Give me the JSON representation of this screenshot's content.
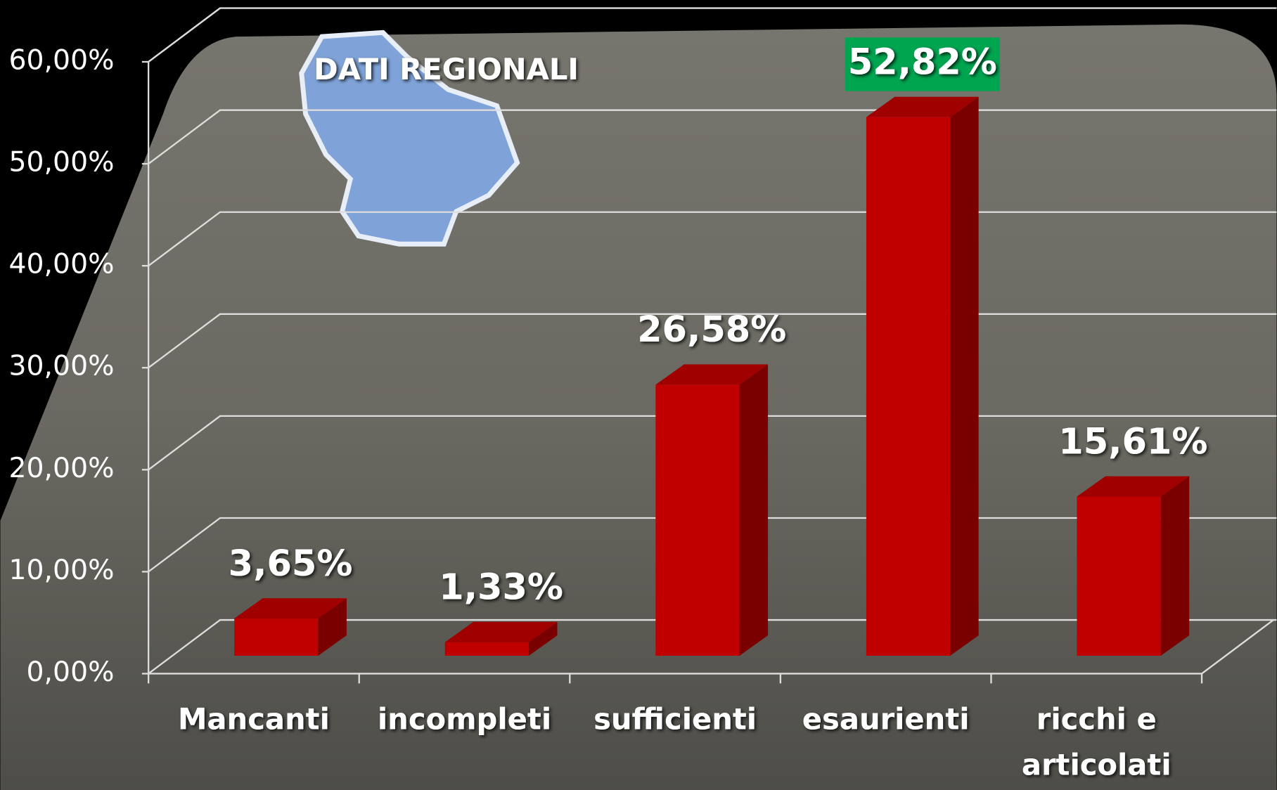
{
  "chart_data": {
    "type": "bar",
    "title": "DATI REGIONALI",
    "categories": [
      "Mancanti",
      "incompleti",
      "sufficienti",
      "esaurienti",
      "ricchi e articolati"
    ],
    "values": [
      3.65,
      1.33,
      26.58,
      52.82,
      15.61
    ],
    "value_labels": [
      "3,65%",
      "1,33%",
      "26,58%",
      "52,82%",
      "15,61%"
    ],
    "color": "#c00000",
    "ylim": [
      0,
      60
    ],
    "yticks": [
      {
        "value": 0,
        "label": "0,00%"
      },
      {
        "value": 10,
        "label": "10,00%"
      },
      {
        "value": 20,
        "label": "20,00%"
      },
      {
        "value": 30,
        "label": "30,00%"
      },
      {
        "value": 40,
        "label": "40,00%"
      },
      {
        "value": 50,
        "label": "50,00%"
      },
      {
        "value": 60,
        "label": "60,00%"
      }
    ],
    "grid": true
  }
}
